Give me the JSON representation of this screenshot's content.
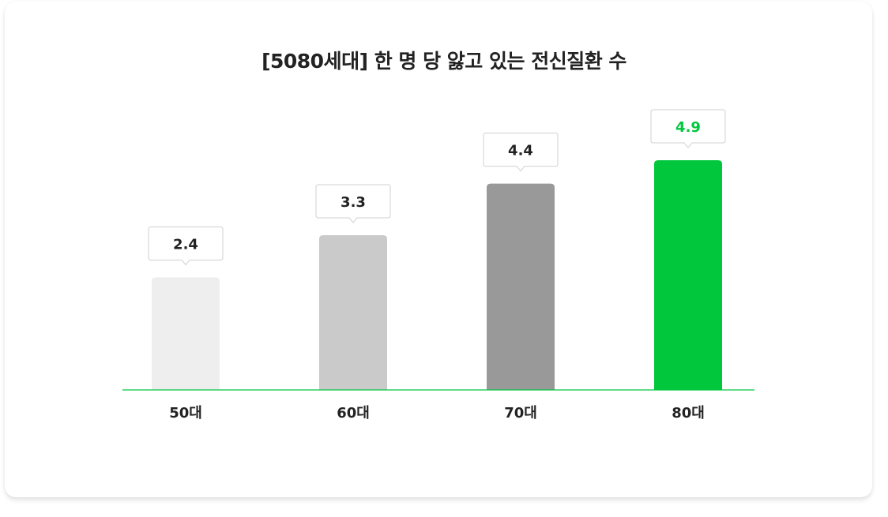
{
  "chart_data": {
    "type": "bar",
    "title": "[5080세대] 한 명 당 앓고 있는 전신질환 수",
    "categories": [
      "50대",
      "60대",
      "70대",
      "80대"
    ],
    "values": [
      2.4,
      3.3,
      4.4,
      4.9
    ],
    "value_labels": [
      "2.4",
      "3.3",
      "4.4",
      "4.9"
    ],
    "colors": [
      "#eeeeee",
      "#cacaca",
      "#999999",
      "#00c73c"
    ],
    "label_colors": [
      "#222222",
      "#222222",
      "#222222",
      "#00c73c"
    ],
    "axis_color": "#00c73c",
    "xlabel": "",
    "ylabel": "",
    "ylim": [
      0,
      5.2
    ],
    "grid": false
  }
}
